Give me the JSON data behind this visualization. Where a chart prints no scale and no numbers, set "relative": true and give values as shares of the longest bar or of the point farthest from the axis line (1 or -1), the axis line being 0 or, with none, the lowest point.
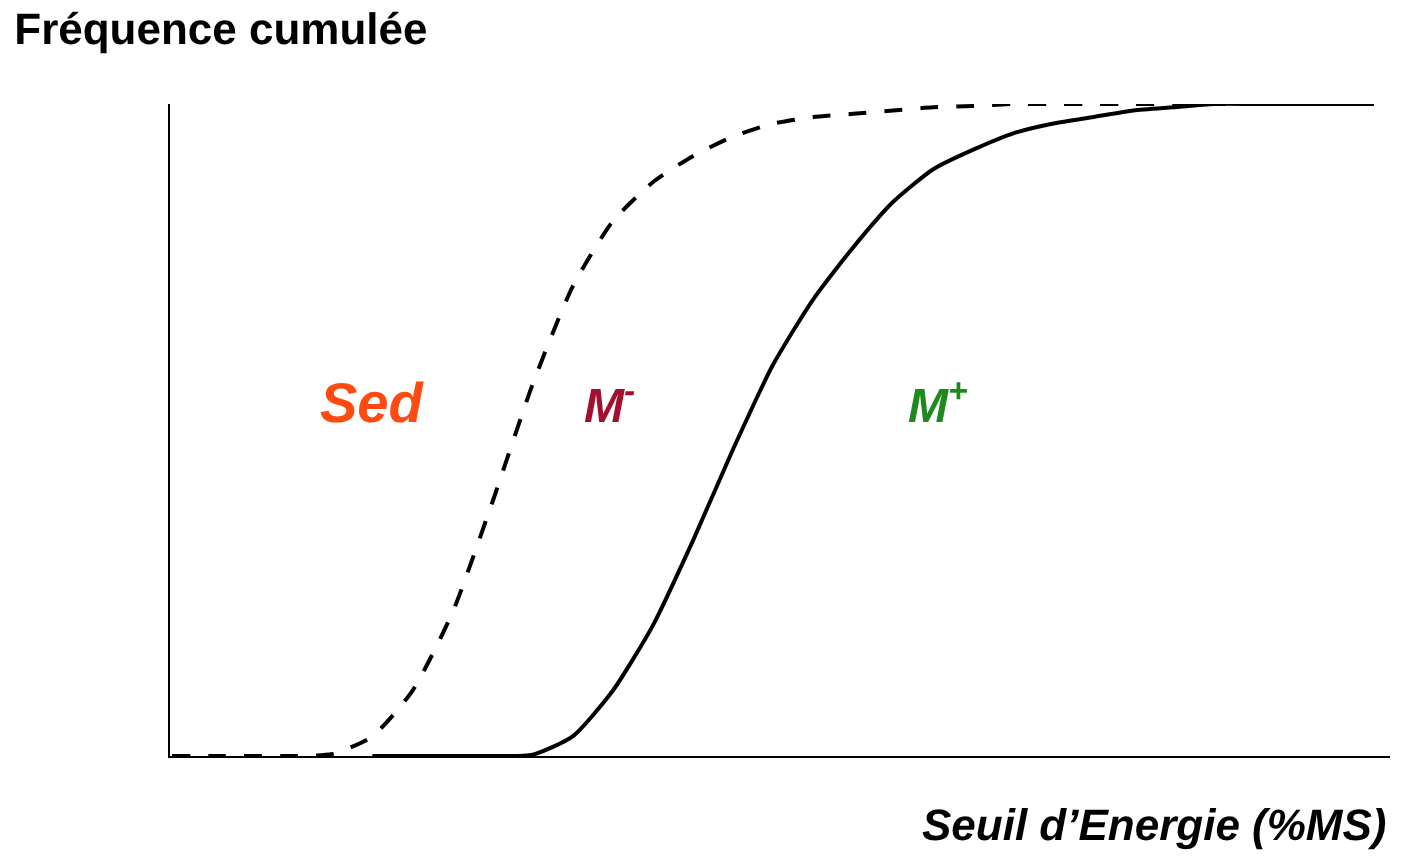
{
  "chart_data": {
    "type": "line",
    "relative": true,
    "title": "Fréquence cumulée",
    "xlabel": "Seuil d’Energie (%MS)",
    "categories": [
      null,
      null,
      null,
      null,
      null,
      null,
      null,
      null,
      null,
      null,
      null,
      null,
      null,
      null,
      null,
      null,
      null,
      null,
      null,
      null,
      null,
      null,
      null,
      null,
      null,
      null,
      null,
      null,
      null,
      null,
      null
    ],
    "series": [
      {
        "color": "#000000",
        "line_style": "dashed",
        "values": [
          0,
          0,
          0,
          0,
          0.003,
          0.03,
          0.1,
          0.22,
          0.39,
          0.57,
          0.72,
          0.82,
          0.88,
          0.92,
          0.95,
          0.97,
          0.98,
          0.985,
          0.99,
          0.995,
          0.997,
          1,
          1,
          1,
          1,
          1,
          1,
          1,
          1,
          1,
          1
        ]
      },
      {
        "color": "#000000",
        "line_style": "solid",
        "values": [
          null,
          null,
          null,
          null,
          null,
          0,
          0,
          0,
          0,
          0.002,
          0.03,
          0.1,
          0.2,
          0.33,
          0.47,
          0.6,
          0.7,
          0.78,
          0.85,
          0.9,
          0.93,
          0.955,
          0.97,
          0.98,
          0.99,
          0.995,
          1,
          1,
          1,
          1,
          1
        ]
      }
    ],
    "annotations": [
      "Sed",
      "M$^{-}$",
      "M$^{+}$"
    ],
    "legend": false,
    "marker": "none"
  }
}
